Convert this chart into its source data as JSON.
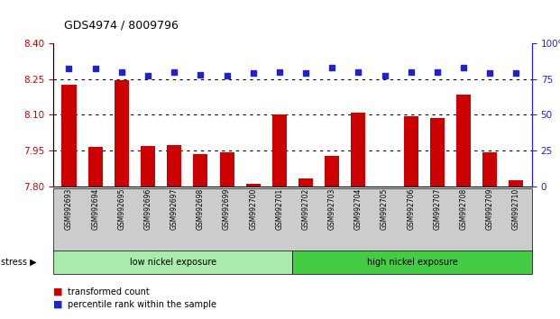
{
  "title": "GDS4974 / 8009796",
  "samples": [
    "GSM992693",
    "GSM992694",
    "GSM992695",
    "GSM992696",
    "GSM992697",
    "GSM992698",
    "GSM992699",
    "GSM992700",
    "GSM992701",
    "GSM992702",
    "GSM992703",
    "GSM992704",
    "GSM992705",
    "GSM992706",
    "GSM992707",
    "GSM992708",
    "GSM992709",
    "GSM992710"
  ],
  "bar_values": [
    8.225,
    7.965,
    8.245,
    7.97,
    7.975,
    7.935,
    7.945,
    7.81,
    8.1,
    7.835,
    7.93,
    8.11,
    7.8,
    8.095,
    8.085,
    8.185,
    7.945,
    7.825
  ],
  "percentile_values": [
    82,
    82,
    80,
    77,
    80,
    78,
    77,
    79,
    80,
    79,
    83,
    80,
    77,
    80,
    80,
    83,
    79,
    79
  ],
  "bar_color": "#cc0000",
  "dot_color": "#2222cc",
  "ylim_left": [
    7.8,
    8.4
  ],
  "ylim_right": [
    0,
    100
  ],
  "yticks_left": [
    7.8,
    7.95,
    8.1,
    8.25,
    8.4
  ],
  "yticks_right": [
    0,
    25,
    50,
    75,
    100
  ],
  "hlines": [
    8.25,
    8.1,
    7.95
  ],
  "groups": [
    {
      "label": "low nickel exposure",
      "start": 0,
      "end": 9,
      "color": "#aaeaaa"
    },
    {
      "label": "high nickel exposure",
      "start": 9,
      "end": 18,
      "color": "#44cc44"
    }
  ],
  "stress_label": "stress ▶",
  "legend_bar_label": "transformed count",
  "legend_dot_label": "percentile rank within the sample",
  "bar_color_left": "#cc0000",
  "dot_color_right": "#2222cc",
  "background_color": "#ffffff",
  "xtick_bg_color": "#cccccc"
}
